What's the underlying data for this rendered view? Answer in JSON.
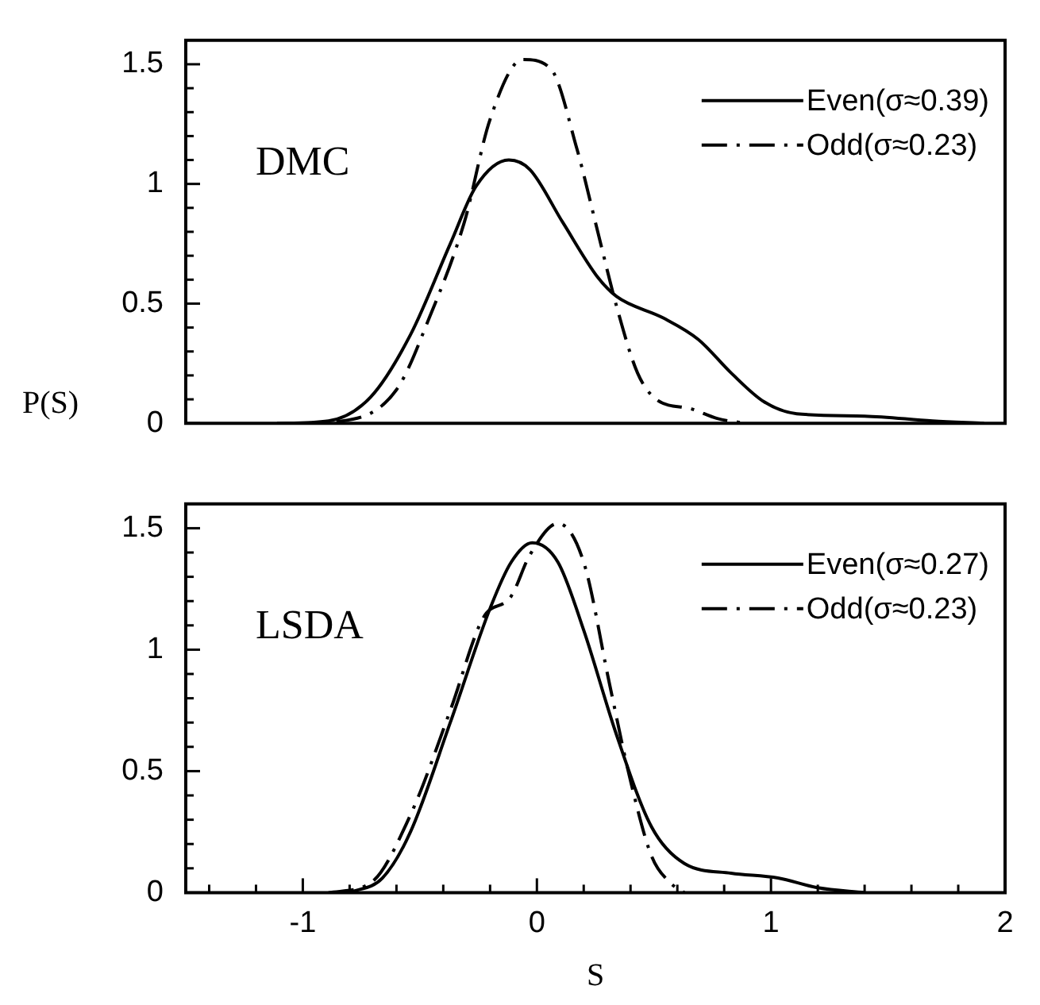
{
  "chart_data": [
    {
      "type": "line",
      "ylabel": "P(S)",
      "annotations": [
        "DMC"
      ],
      "legend": "top right",
      "marker": "none",
      "tick_labels": "y",
      "xlim": [
        -1.5,
        2
      ],
      "ylim": [
        0,
        1.6
      ],
      "yticks": [
        0,
        {
          "value": 0.1,
          "label": null
        },
        {
          "value": 0.2,
          "label": null
        },
        {
          "value": 0.3,
          "label": null
        },
        {
          "value": 0.4,
          "label": null
        },
        0.5,
        {
          "value": 0.6,
          "label": null
        },
        {
          "value": 0.7,
          "label": null
        },
        {
          "value": 0.8,
          "label": null
        },
        {
          "value": 0.9,
          "label": null
        },
        1,
        {
          "value": 1.1,
          "label": null
        },
        {
          "value": 1.2,
          "label": null
        },
        {
          "value": 1.3,
          "label": null
        },
        {
          "value": 1.4,
          "label": null
        },
        1.5
      ],
      "series": [
        {
          "name": "Even(σ≈0.39)",
          "color": "#000000",
          "line_style": "solid",
          "x": [
            -1.11,
            -0.89,
            -0.71,
            -0.54,
            -0.37,
            -0.26,
            -0.12,
            -0.03,
            0.11,
            0.26,
            0.34,
            0.54,
            0.69,
            0.83,
            0.97,
            1.11,
            1.4,
            1.69,
            1.91
          ],
          "values": [
            0,
            0.01,
            0.11,
            0.37,
            0.75,
            0.99,
            1.1,
            1.06,
            0.84,
            0.61,
            0.53,
            0.44,
            0.35,
            0.21,
            0.09,
            0.04,
            0.03,
            0.01,
            0
          ]
        },
        {
          "name": "Odd(σ≈0.23)",
          "color": "#000000",
          "line_style": "dashed",
          "x": [
            -1.06,
            -0.83,
            -0.6,
            -0.46,
            -0.31,
            -0.2,
            -0.06,
            0.06,
            0.17,
            0.26,
            0.34,
            0.43,
            0.51,
            0.66,
            0.77,
            0.89
          ],
          "values": [
            0,
            0.01,
            0.14,
            0.44,
            0.84,
            1.27,
            1.52,
            1.48,
            1.15,
            0.8,
            0.49,
            0.21,
            0.1,
            0.06,
            0.02,
            0
          ]
        }
      ]
    },
    {
      "type": "line",
      "xlabel": "S",
      "annotations": [
        "LSDA"
      ],
      "legend": "top right",
      "marker": "none",
      "xlim": [
        -1.5,
        2
      ],
      "ylim": [
        0,
        1.6
      ],
      "xticks": [
        {
          "value": -1.4,
          "label": null
        },
        {
          "value": -1.2,
          "label": null
        },
        -1,
        {
          "value": -0.8,
          "label": null
        },
        {
          "value": -0.6,
          "label": null
        },
        {
          "value": -0.4,
          "label": null
        },
        {
          "value": -0.2,
          "label": null
        },
        0,
        {
          "value": 0.2,
          "label": null
        },
        {
          "value": 0.4,
          "label": null
        },
        {
          "value": 0.6,
          "label": null
        },
        {
          "value": 0.8,
          "label": null
        },
        1,
        {
          "value": 1.2,
          "label": null
        },
        {
          "value": 1.4,
          "label": null
        },
        {
          "value": 1.6,
          "label": null
        },
        {
          "value": 1.8,
          "label": null
        },
        2
      ],
      "yticks": [
        0,
        {
          "value": 0.1,
          "label": null
        },
        {
          "value": 0.2,
          "label": null
        },
        {
          "value": 0.3,
          "label": null
        },
        {
          "value": 0.4,
          "label": null
        },
        0.5,
        {
          "value": 0.6,
          "label": null
        },
        {
          "value": 0.7,
          "label": null
        },
        {
          "value": 0.8,
          "label": null
        },
        {
          "value": 0.9,
          "label": null
        },
        1,
        {
          "value": 1.1,
          "label": null
        },
        {
          "value": 1.2,
          "label": null
        },
        {
          "value": 1.3,
          "label": null
        },
        {
          "value": 1.4,
          "label": null
        },
        1.5
      ],
      "series": [
        {
          "name": "Even(σ≈0.27)",
          "color": "#000000",
          "line_style": "solid",
          "x": [
            -0.8,
            -0.66,
            -0.54,
            -0.37,
            -0.2,
            -0.11,
            -0.02,
            0.09,
            0.2,
            0.34,
            0.49,
            0.63,
            0.83,
            1.03,
            1.2,
            1.4
          ],
          "values": [
            0,
            0.06,
            0.25,
            0.7,
            1.17,
            1.36,
            1.44,
            1.36,
            1.08,
            0.65,
            0.27,
            0.12,
            0.08,
            0.06,
            0.02,
            0
          ]
        },
        {
          "name": "Odd(σ≈0.23)",
          "color": "#000000",
          "line_style": "dashed",
          "x": [
            -0.89,
            -0.71,
            -0.54,
            -0.37,
            -0.23,
            -0.11,
            -0.03,
            0.09,
            0.2,
            0.31,
            0.4,
            0.49,
            0.57,
            0.63
          ],
          "values": [
            0,
            0.04,
            0.32,
            0.75,
            1.13,
            1.22,
            1.39,
            1.52,
            1.36,
            0.86,
            0.46,
            0.15,
            0.04,
            0
          ]
        }
      ]
    }
  ]
}
